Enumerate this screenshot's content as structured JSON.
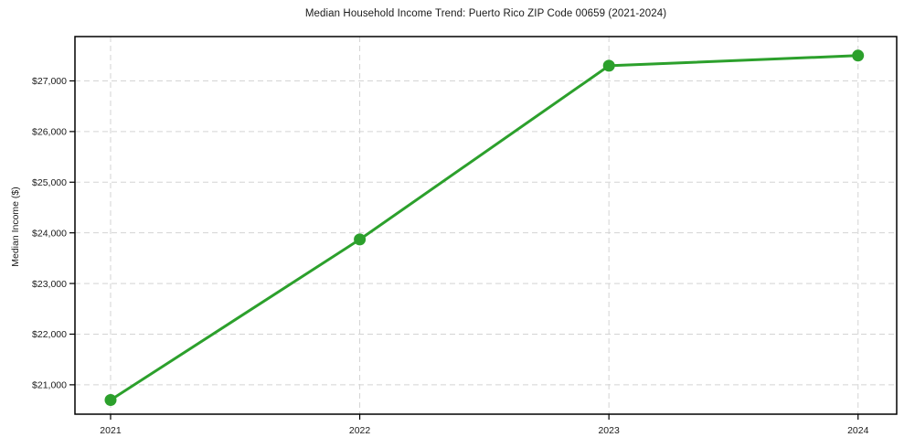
{
  "chart_data": {
    "type": "line",
    "title": "Median Household Income Trend: Puerto Rico ZIP Code 00659 (2021-2024)",
    "xlabel": "",
    "ylabel": "Median Income ($)",
    "x": [
      2021,
      2022,
      2023,
      2024
    ],
    "x_tick_labels": [
      "2021",
      "2022",
      "2023",
      "2024"
    ],
    "series": [
      {
        "name": "Median Household Income",
        "values": [
          20700,
          23870,
          27300,
          27500
        ]
      }
    ],
    "y_ticks": [
      21000,
      22000,
      23000,
      24000,
      25000,
      26000,
      27000
    ],
    "y_tick_labels": [
      "$21,000",
      "$22,000",
      "$23,000",
      "$24,000",
      "$25,000",
      "$26,000",
      "$27,000"
    ],
    "xlim": [
      2020.857,
      2024.155
    ],
    "ylim": [
      20420,
      27875
    ],
    "grid": true,
    "legend": "none",
    "colors": {
      "line": "#2ca02c",
      "marker": "#2ca02c",
      "grid": "#d4d4d4",
      "border": "#000000",
      "text": "#1a1a1a"
    },
    "marker_style": "circle"
  }
}
